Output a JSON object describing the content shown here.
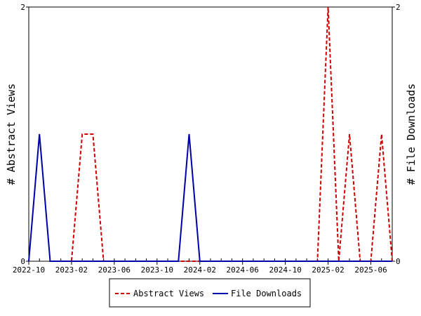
{
  "chart_data": {
    "type": "line",
    "x_ticks": [
      "2022-10",
      "2023-02",
      "2023-06",
      "2023-10",
      "2024-02",
      "2024-06",
      "2024-10",
      "2025-02",
      "2025-06"
    ],
    "x_range": [
      "2022-10",
      "2025-08"
    ],
    "ylabel_left": "# Abstract Views",
    "ylabel_right": "# File Downloads",
    "ylim": [
      0,
      2
    ],
    "y_ticks_left": [
      "0",
      "2"
    ],
    "y_ticks_right": [
      "0",
      "2"
    ],
    "grid": false,
    "legend_position": "bottom",
    "series": [
      {
        "name": "Abstract Views",
        "color": "#cc0000",
        "dash": true,
        "points": [
          [
            "2023-01",
            0
          ],
          [
            "2023-02",
            0
          ],
          [
            "2023-03",
            1
          ],
          [
            "2023-04",
            1
          ],
          [
            "2023-05",
            0
          ],
          [
            "2024-12",
            0
          ],
          [
            "2025-01",
            0
          ],
          [
            "2025-02",
            2
          ],
          [
            "2025-03",
            0
          ],
          [
            "2025-04",
            1
          ],
          [
            "2025-05",
            0
          ],
          [
            "2025-06",
            0
          ],
          [
            "2025-07",
            1
          ],
          [
            "2025-08",
            0
          ]
        ]
      },
      {
        "name": "File Downloads",
        "color": "#0000aa",
        "dash": false,
        "points": [
          [
            "2022-10",
            0
          ],
          [
            "2022-11",
            1
          ],
          [
            "2022-12",
            0
          ],
          [
            "2023-01",
            0
          ],
          [
            "2023-02",
            0
          ],
          [
            "2023-03",
            0
          ],
          [
            "2023-04",
            0
          ],
          [
            "2023-05",
            0
          ],
          [
            "2023-06",
            0
          ],
          [
            "2023-07",
            0
          ],
          [
            "2023-08",
            0
          ],
          [
            "2023-09",
            0
          ],
          [
            "2023-10",
            0
          ],
          [
            "2023-11",
            0
          ],
          [
            "2023-12",
            0
          ],
          [
            "2024-01",
            1
          ],
          [
            "2024-02",
            0
          ],
          [
            "2024-03",
            0
          ],
          [
            "2024-04",
            0
          ],
          [
            "2024-05",
            0
          ],
          [
            "2024-06",
            0
          ],
          [
            "2024-07",
            0
          ],
          [
            "2024-08",
            0
          ],
          [
            "2024-09",
            0
          ],
          [
            "2024-10",
            0
          ],
          [
            "2024-11",
            0
          ],
          [
            "2024-12",
            0
          ],
          [
            "2025-01",
            0
          ],
          [
            "2025-02",
            0
          ],
          [
            "2025-03",
            0
          ],
          [
            "2025-04",
            0
          ],
          [
            "2025-05",
            0
          ],
          [
            "2025-06",
            0
          ],
          [
            "2025-07",
            0
          ],
          [
            "2025-08",
            0
          ]
        ]
      }
    ]
  }
}
